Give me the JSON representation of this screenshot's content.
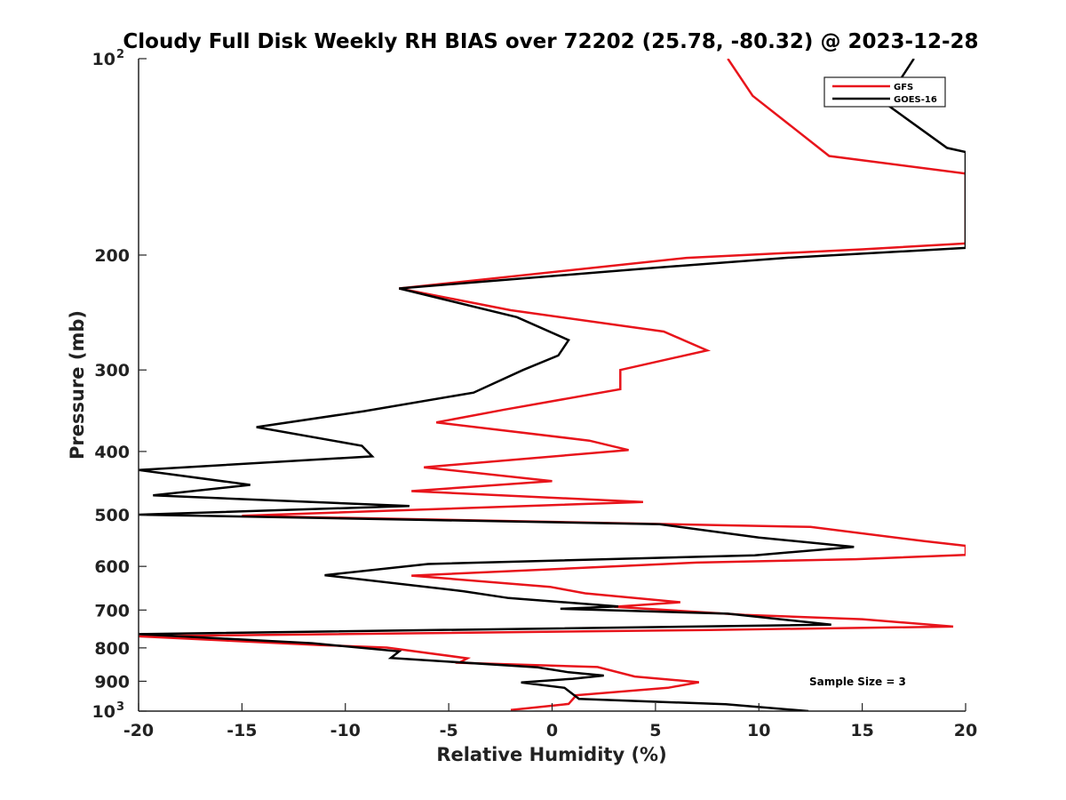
{
  "chart_data": {
    "type": "line",
    "title": "Cloudy Full Disk Weekly RH BIAS over 72202 (25.78, -80.32) @ 2023-12-28",
    "xlabel": "Relative Humidity (%)",
    "ylabel": "Pressure (mb)",
    "xlim": [
      -20,
      20
    ],
    "ylim": [
      100,
      1000
    ],
    "y_scale": "log",
    "y_reversed": true,
    "grid": false,
    "legend_position": "top-right",
    "x_ticks": [
      -20,
      -15,
      -10,
      -5,
      0,
      5,
      10,
      15,
      20
    ],
    "x_tick_labels": [
      "-20",
      "-15",
      "-10",
      "-5",
      "0",
      "5",
      "10",
      "15",
      "20"
    ],
    "y_ticks": [
      100,
      200,
      300,
      400,
      500,
      600,
      700,
      800,
      900,
      1000
    ],
    "y_tick_labels": [
      {
        "base": "10",
        "exp": "2"
      },
      {
        "base": "200",
        "exp": ""
      },
      {
        "base": "300",
        "exp": ""
      },
      {
        "base": "400",
        "exp": ""
      },
      {
        "base": "500",
        "exp": ""
      },
      {
        "base": "600",
        "exp": ""
      },
      {
        "base": "700",
        "exp": ""
      },
      {
        "base": "800",
        "exp": ""
      },
      {
        "base": "900",
        "exp": ""
      },
      {
        "base": "10",
        "exp": "3"
      }
    ],
    "annotation": "Sample Size = 3",
    "series": [
      {
        "name": "GFS",
        "color": "#e8141b",
        "points": [
          [
            8.5,
            100
          ],
          [
            9.7,
            114
          ],
          [
            13.4,
            141
          ],
          [
            20,
            150
          ],
          [
            20,
            192
          ],
          [
            15,
            196
          ],
          [
            6.5,
            202
          ],
          [
            -7.4,
            225
          ],
          [
            -2,
            243
          ],
          [
            5.4,
            262
          ],
          [
            7.5,
            280
          ],
          [
            3.3,
            300
          ],
          [
            3.3,
            321
          ],
          [
            -2.3,
            345
          ],
          [
            -5.6,
            361
          ],
          [
            1.8,
            385
          ],
          [
            3.7,
            398
          ],
          [
            -6.2,
            423
          ],
          [
            0,
            444
          ],
          [
            -6.8,
            460
          ],
          [
            4.4,
            478
          ],
          [
            -15.0,
            502
          ],
          [
            12.5,
            522
          ],
          [
            18.0,
            549
          ],
          [
            20,
            558
          ],
          [
            20,
            576
          ],
          [
            14.7,
            585
          ],
          [
            7.0,
            592
          ],
          [
            -6.8,
            620
          ],
          [
            -0.1,
            645
          ],
          [
            1.6,
            660
          ],
          [
            6.2,
            681
          ],
          [
            3.0,
            692
          ],
          [
            9.3,
            712
          ],
          [
            15.0,
            723
          ],
          [
            19.4,
            742
          ],
          [
            7.6,
            751
          ],
          [
            -20,
            768
          ],
          [
            -11.2,
            792
          ],
          [
            -8.0,
            799
          ],
          [
            -4.1,
            830
          ],
          [
            -4.5,
            843
          ],
          [
            2.2,
            856
          ],
          [
            4.0,
            885
          ],
          [
            7.1,
            903
          ],
          [
            5.6,
            921
          ],
          [
            1.1,
            946
          ],
          [
            1.1,
            951
          ],
          [
            0.8,
            975
          ],
          [
            -2.0,
            996
          ]
        ]
      },
      {
        "name": "GOES-16",
        "color": "#000000",
        "points": [
          [
            17.5,
            100
          ],
          [
            16.1,
            117
          ],
          [
            19.1,
            137
          ],
          [
            20,
            139
          ],
          [
            20,
            195
          ],
          [
            11.3,
            202
          ],
          [
            5.1,
            209
          ],
          [
            -7.4,
            225
          ],
          [
            -1.7,
            249
          ],
          [
            0.8,
            270
          ],
          [
            0.3,
            285
          ],
          [
            -1.4,
            300
          ],
          [
            -3.8,
            325
          ],
          [
            -9.1,
            347
          ],
          [
            -14.3,
            367
          ],
          [
            -9.2,
            392
          ],
          [
            -8.7,
            407
          ],
          [
            -20,
            427
          ],
          [
            -14.6,
            450
          ],
          [
            -19.3,
            467
          ],
          [
            -6.9,
            485
          ],
          [
            -20,
            500
          ],
          [
            5.2,
            517
          ],
          [
            10.0,
            542
          ],
          [
            14.6,
            560
          ],
          [
            9.8,
            577
          ],
          [
            -6.0,
            595
          ],
          [
            -11.0,
            619
          ],
          [
            -4.3,
            655
          ],
          [
            -2.1,
            671
          ],
          [
            3.2,
            691
          ],
          [
            0.4,
            697
          ],
          [
            8.5,
            709
          ],
          [
            13.5,
            737
          ],
          [
            -20,
            762
          ],
          [
            -11.6,
            787
          ],
          [
            -7.4,
            810
          ],
          [
            -7.8,
            829
          ],
          [
            -0.7,
            857
          ],
          [
            0.8,
            872
          ],
          [
            2.5,
            882
          ],
          [
            1.0,
            892
          ],
          [
            -1.5,
            904
          ],
          [
            0.6,
            921
          ],
          [
            1.3,
            958
          ],
          [
            8.4,
            976
          ],
          [
            12.4,
            1000
          ]
        ]
      }
    ]
  }
}
